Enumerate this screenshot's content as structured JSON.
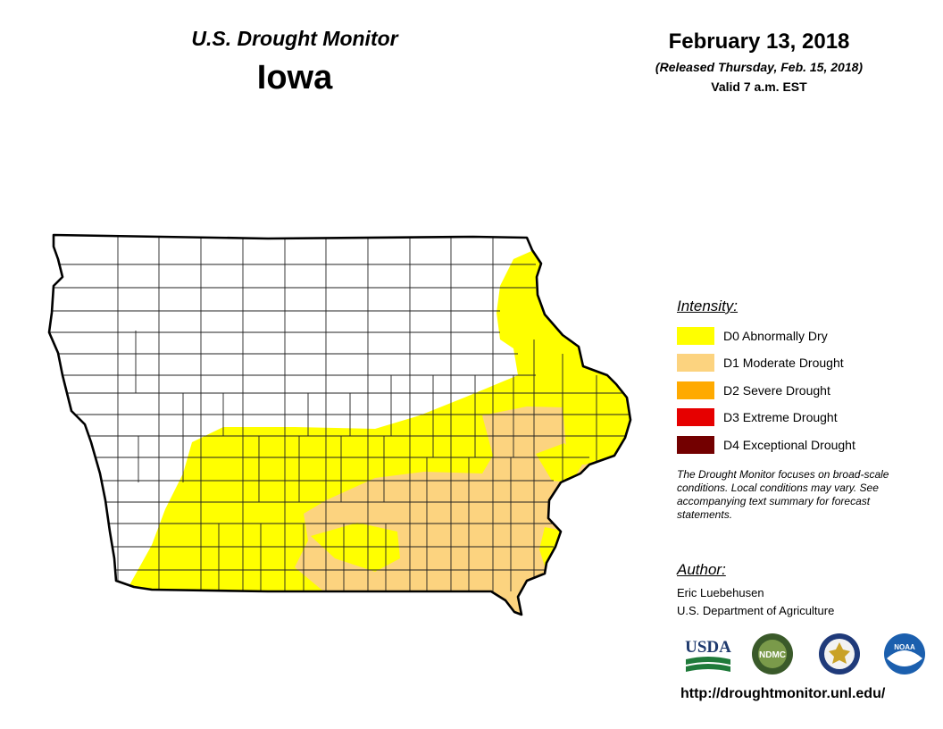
{
  "header": {
    "title": "U.S. Drought Monitor",
    "state": "Iowa",
    "date": "February 13, 2018",
    "released": "(Released Thursday, Feb. 15, 2018)",
    "valid": "Valid 7 a.m. EST"
  },
  "legend": {
    "title": "Intensity:",
    "items": [
      {
        "label": "D0 Abnormally Dry",
        "color": "#ffff00"
      },
      {
        "label": "D1 Moderate Drought",
        "color": "#fcd37f"
      },
      {
        "label": "D2 Severe Drought",
        "color": "#ffaa00"
      },
      {
        "label": "D3 Extreme Drought",
        "color": "#e60000"
      },
      {
        "label": "D4 Exceptional Drought",
        "color": "#730000"
      }
    ],
    "note": "The Drought Monitor focuses on broad-scale conditions. Local conditions may vary. See accompanying text summary for forecast statements."
  },
  "author": {
    "heading": "Author:",
    "name": "Eric Luebehusen",
    "org": "U.S. Department of Agriculture"
  },
  "logos": {
    "usda": "USDA",
    "ndmc": "NDMC",
    "noaa": "NOAA"
  },
  "url": "http://droughtmonitor.unl.edu/"
}
